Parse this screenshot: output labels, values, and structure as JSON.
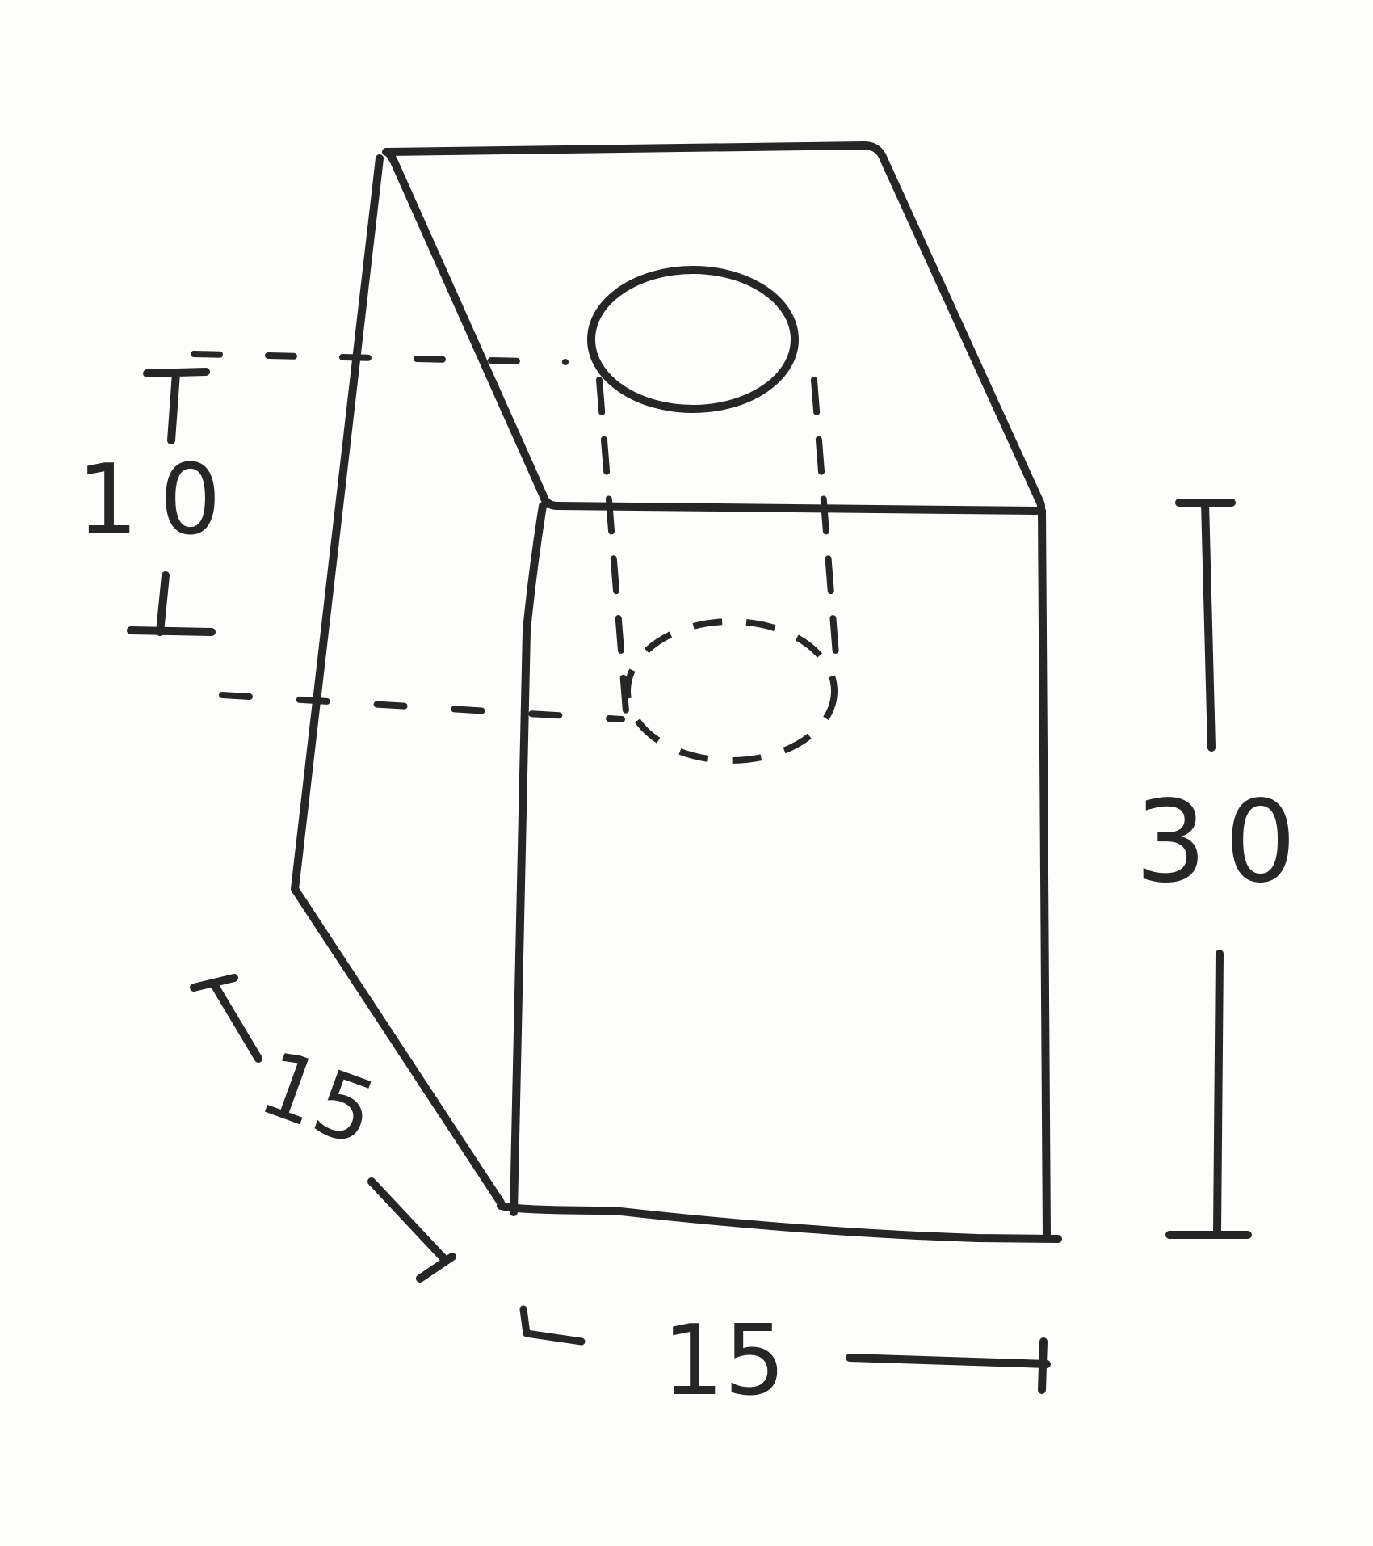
{
  "diagram": {
    "ink_color": "#262626",
    "paper_color": "#fdfdfb",
    "dimensions": {
      "hole_depth": "10",
      "height": "30",
      "depth": "15",
      "width": "15"
    }
  }
}
